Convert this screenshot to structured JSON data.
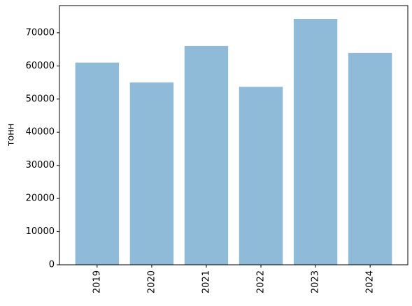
{
  "chart_data": {
    "type": "bar",
    "ylabel": "тонн",
    "categories": [
      "2019",
      "2020",
      "2021",
      "2022",
      "2023",
      "2024"
    ],
    "values": [
      61000,
      55000,
      66000,
      53700,
      74200,
      63900
    ],
    "color": "#8fbbd9",
    "ylim": [
      0,
      78200
    ],
    "yticks": [
      0,
      10000,
      20000,
      30000,
      40000,
      50000,
      60000,
      70000
    ]
  }
}
